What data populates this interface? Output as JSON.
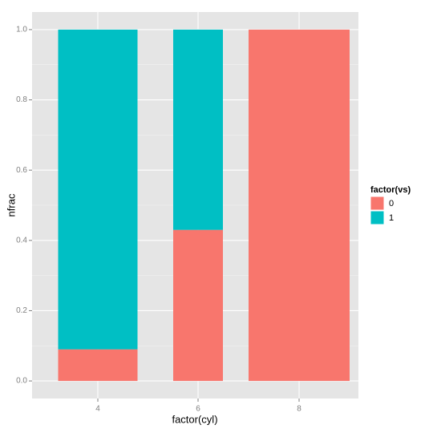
{
  "chart_data": {
    "type": "bar",
    "stacked": true,
    "x_label": "factor(cyl)",
    "y_label": "nfrac",
    "categories": [
      "4",
      "6",
      "8"
    ],
    "legend_title": "factor(vs)",
    "series": [
      {
        "name": "0",
        "color": "#f8766d",
        "values": [
          0.09,
          0.43,
          1.0
        ]
      },
      {
        "name": "1",
        "color": "#00bfc4",
        "values": [
          0.91,
          0.57,
          0
        ]
      }
    ],
    "ylim": [
      -0.05,
      1.05
    ],
    "yticks": [
      {
        "value": 0,
        "label": "0.0"
      },
      0.2,
      0.4,
      0.6,
      0.8,
      {
        "value": 1,
        "label": "1.0"
      }
    ],
    "grid": true,
    "legend": "right"
  }
}
